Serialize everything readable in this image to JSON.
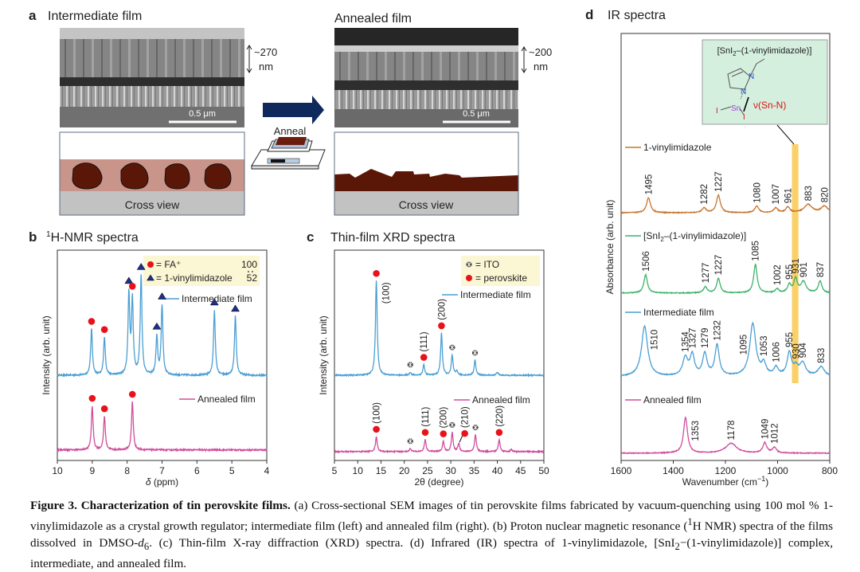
{
  "panel_a": {
    "label": "a",
    "left_title": "Intermediate film",
    "right_title": "Annealed film",
    "left_thickness": "~270",
    "right_thickness": "~200",
    "unit": "nm",
    "scale_bar": "0.5 μm",
    "arrow_label": "Anneal",
    "cross_view": "Cross view",
    "colors": {
      "arrow": "#10295c",
      "grain": "#5a1708",
      "matrix": "#c9958b",
      "substrate": "#c2c2c2"
    }
  },
  "chart_data": [
    {
      "type": "line",
      "label": "b",
      "title_sup": "1",
      "title": "H-NMR spectra",
      "xlabel_italic": "δ",
      "xlabel": " (ppm)",
      "ylabel": "Intensity (arb. unit)",
      "xlim": [
        10,
        4
      ],
      "ylim": [
        0,
        100
      ],
      "xticks": [
        "10",
        "9",
        "8",
        "7",
        "6",
        "5",
        "4"
      ],
      "legend": {
        "fa": "= FA⁺",
        "vinyl": "= 1-vinylimidazole",
        "ratio_top": "100",
        "ratio_bottom": "52"
      },
      "series": [
        {
          "name": "Intermediate film",
          "color": "#4a9fd4",
          "offset": 40.5,
          "width": 0.03,
          "peaks": [
            {
              "x": 9.02,
              "h": 22,
              "m": "dot"
            },
            {
              "x": 8.65,
              "h": 18,
              "m": "dot"
            },
            {
              "x": 7.95,
              "h": 38,
              "m": "tri"
            },
            {
              "x": 7.85,
              "h": 35,
              "m": "dot"
            },
            {
              "x": 7.6,
              "h": 47,
              "m": "tri"
            },
            {
              "x": 7.15,
              "h": 18,
              "m": "tri"
            },
            {
              "x": 7.0,
              "h": 33,
              "m": "tri"
            },
            {
              "x": 5.5,
              "h": 31,
              "m": "tri"
            },
            {
              "x": 4.9,
              "h": 28,
              "m": "tri"
            }
          ]
        },
        {
          "name": "Annealed film",
          "color": "#d04d9c",
          "offset": 5,
          "width": 0.03,
          "peaks": [
            {
              "x": 9.0,
              "h": 21,
              "m": "dot"
            },
            {
              "x": 8.65,
              "h": 16,
              "m": "dot"
            },
            {
              "x": 7.85,
              "h": 23,
              "m": "dot"
            }
          ]
        }
      ]
    },
    {
      "type": "line",
      "label": "c",
      "title": "Thin-film XRD spectra",
      "xlabel": "2θ (degree)",
      "ylabel": "Intensity (arb. unit)",
      "xlim": [
        5,
        50
      ],
      "ylim": [
        0,
        100
      ],
      "xticks": [
        "5",
        "10",
        "15",
        "20",
        "25",
        "30",
        "35",
        "40",
        "45",
        "50"
      ],
      "legend": {
        "ito": "= ITO",
        "perovskite": "= perovskite"
      },
      "series": [
        {
          "name": "Intermediate film",
          "color": "#4a9fd4",
          "offset": 40.5,
          "width": 0.22,
          "peaks": [
            {
              "x": 14.0,
              "h": 45,
              "m": "dot",
              "label": "(100)",
              "side": "right"
            },
            {
              "x": 21.3,
              "h": 1.5,
              "m": "ito"
            },
            {
              "x": 24.2,
              "h": 5,
              "m": "dot",
              "label": "(111)"
            },
            {
              "x": 28.0,
              "h": 20,
              "m": "dot",
              "label": "(200)"
            },
            {
              "x": 30.3,
              "h": 9.5,
              "m": "ito"
            },
            {
              "x": 31.3,
              "h": 2
            },
            {
              "x": 35.2,
              "h": 7.2,
              "m": "ito"
            },
            {
              "x": 40.0,
              "h": 1.5
            }
          ]
        },
        {
          "name": "Annealed film",
          "color": "#d04d9c",
          "offset": 4.2,
          "width": 0.22,
          "peaks": [
            {
              "x": 14.0,
              "h": 7.2,
              "m": "dot",
              "label": "(100)"
            },
            {
              "x": 21.3,
              "h": 1.5,
              "m": "ito"
            },
            {
              "x": 24.5,
              "h": 5.7,
              "m": "dot",
              "label": "(111)"
            },
            {
              "x": 28.4,
              "h": 4.9,
              "m": "dot",
              "label": "(200)"
            },
            {
              "x": 30.3,
              "h": 9.1,
              "m": "ito"
            },
            {
              "x": 31.7,
              "h": 3.8,
              "m": "dot",
              "mx": 33.0,
              "label": "(210)"
            },
            {
              "x": 35.3,
              "h": 8,
              "m": "ito"
            },
            {
              "x": 40.4,
              "h": 5.7,
              "m": "dot",
              "label": "(220)"
            },
            {
              "x": 43.0,
              "h": 1
            }
          ]
        }
      ]
    },
    {
      "type": "line",
      "label": "d",
      "title": "IR spectra",
      "xlabel": "Wavenumber (cm",
      "xlabel_sup": "−1",
      "xlabel_end": ")",
      "ylabel": "Absorbance (arb. unit)",
      "xlim": [
        1600,
        800
      ],
      "ylim": [
        0,
        100
      ],
      "xticks": [
        "1600",
        "1400",
        "1200",
        "1000",
        "800"
      ],
      "highlight_band": [
        945,
        920
      ],
      "inset": {
        "title_a": "[SnI",
        "title_sub": "2",
        "title_b": "–(1-vinylimidazole)]",
        "n1": "N",
        "n2": "N",
        "sn": "Sn",
        "i1": "I",
        "i2": "I",
        "mode": "ν(Sn-N)"
      },
      "series": [
        {
          "name": "1-vinylimidazole",
          "color": "#c8752e",
          "offset": 58,
          "width": 9,
          "peaks": [
            {
              "x": 1495,
              "h": 3.5,
              "label": "1495"
            },
            {
              "x": 1282,
              "h": 1.1,
              "label": "1282"
            },
            {
              "x": 1227,
              "h": 4.1,
              "label": "1227"
            },
            {
              "x": 1080,
              "h": 1.5,
              "label": "1080"
            },
            {
              "x": 1007,
              "h": 1.1,
              "label": "1007"
            },
            {
              "x": 961,
              "h": 1.3,
              "label": "961"
            },
            {
              "x": 883,
              "h": 1.9,
              "w": 18,
              "label": "883"
            },
            {
              "x": 820,
              "h": 1.5,
              "w": 15,
              "label": "820"
            }
          ]
        },
        {
          "name_a": "[SnI",
          "name_sub": "2",
          "name_b": "–(1-vinylimidazole)]",
          "color": "#3cb36a",
          "offset": 39.2,
          "width": 8,
          "peaks": [
            {
              "x": 1506,
              "h": 4.3,
              "label": "1506"
            },
            {
              "x": 1277,
              "h": 1.5,
              "label": "1277"
            },
            {
              "x": 1227,
              "h": 3.4,
              "label": "1227"
            },
            {
              "x": 1085,
              "h": 6.7,
              "label": "1085"
            },
            {
              "x": 1002,
              "h": 0.9,
              "label": "1002"
            },
            {
              "x": 955,
              "h": 1.9,
              "label": "955"
            },
            {
              "x": 931,
              "h": 3.2,
              "label": "931"
            },
            {
              "x": 901,
              "h": 2.6,
              "w": 12,
              "label": "901"
            },
            {
              "x": 837,
              "h": 2.8,
              "label": "837"
            }
          ]
        },
        {
          "name": "Intermediate film",
          "color": "#4a9fd4",
          "offset": 19.6,
          "width": 10,
          "peaks": [
            {
              "x": 1510,
              "h": 11.8,
              "w": 14,
              "label": "1510",
              "side": "right"
            },
            {
              "x": 1354,
              "h": 4.2,
              "w": 12,
              "label": "1354"
            },
            {
              "x": 1327,
              "h": 4.8,
              "label": "1327"
            },
            {
              "x": 1279,
              "h": 5.2,
              "label": "1279"
            },
            {
              "x": 1232,
              "h": 7.2,
              "label": "1232"
            },
            {
              "x": 1095,
              "h": 12.3,
              "w": 14,
              "label": "1095",
              "side": "left"
            },
            {
              "x": 1053,
              "h": 2.6,
              "label": "1053"
            },
            {
              "x": 1006,
              "h": 1.9,
              "label": "1006"
            },
            {
              "x": 955,
              "h": 5.4,
              "label": "955"
            },
            {
              "x": 930,
              "h": 1.8,
              "label": "930"
            },
            {
              "x": 904,
              "h": 3,
              "w": 14,
              "label": "904"
            },
            {
              "x": 833,
              "h": 2.2,
              "w": 15,
              "label": "833"
            }
          ]
        },
        {
          "name": "Annealed film",
          "color": "#d04d9c",
          "offset": 1.7,
          "width": 9,
          "peaks": [
            {
              "x": 1353,
              "h": 8.4,
              "label": "1353",
              "side": "right"
            },
            {
              "x": 1178,
              "h": 2.3,
              "w": 25,
              "label": "1178"
            },
            {
              "x": 1049,
              "h": 2.4,
              "label": "1049"
            },
            {
              "x": 1012,
              "h": 1.3,
              "label": "1012"
            }
          ]
        }
      ]
    }
  ],
  "caption": {
    "title": "Figure 3. Characterization of tin perovskite films.",
    "t1": " (a) Cross-sectional SEM images of tin perovskite films fabricated by vacuum-quenching using 100 mol % 1-vinylimidazole as a crystal growth regulator; intermediate film (left) and annealed film (right). (b) Proton nuclear magnetic resonance (",
    "sup1": "1",
    "t2": "H NMR) spectra of the films dissolved in DMSO-",
    "it1": "d",
    "sub1": "6",
    "t3": ". (c) Thin-film X-ray diffraction (XRD) spectra. (d) Infrared (IR) spectra of 1-vinylimidazole, [SnI",
    "sub2": "2",
    "t4": "−(1-vinylimidazole)] complex, intermediate, and annealed film."
  }
}
